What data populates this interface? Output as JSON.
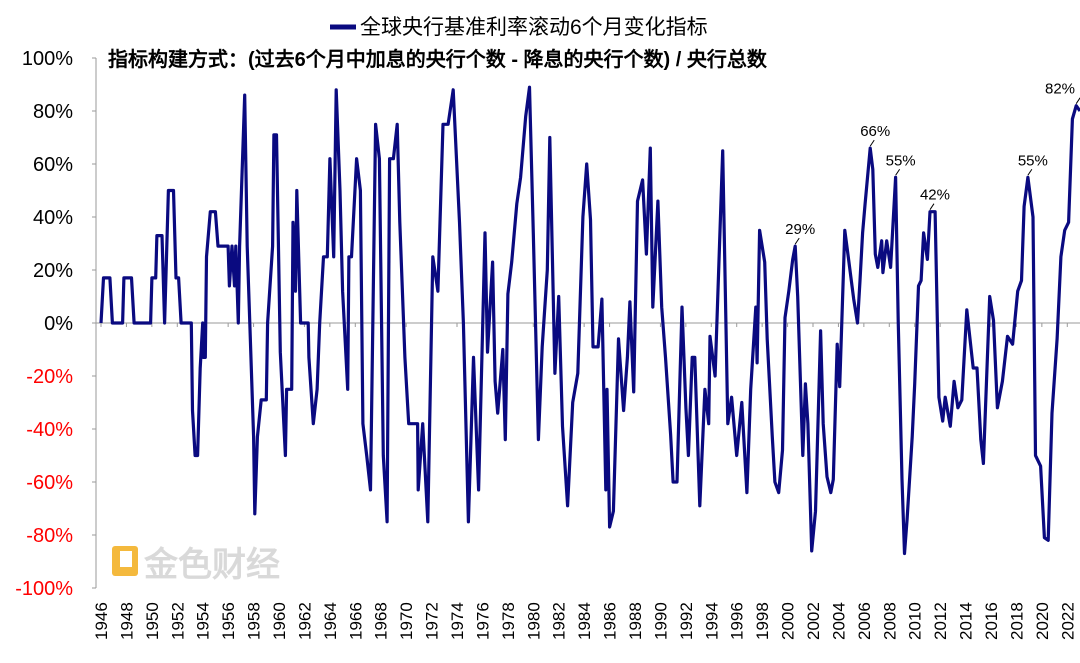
{
  "chart_data": {
    "type": "line",
    "title": "",
    "subtitle": "指标构建方式：(过去6个月中加息的央行个数 - 降息的央行个数) / 央行总数",
    "xlabel": "",
    "ylabel": "",
    "xlim": [
      1946,
      2023
    ],
    "ylim": [
      -100,
      100
    ],
    "y_unit": "%",
    "grid": false,
    "legend_position": "top-center",
    "x_ticks": [
      "1946",
      "1948",
      "1950",
      "1952",
      "1954",
      "1956",
      "1958",
      "1960",
      "1962",
      "1964",
      "1966",
      "1968",
      "1970",
      "1972",
      "1974",
      "1976",
      "1978",
      "1980",
      "1982",
      "1984",
      "1986",
      "1988",
      "1990",
      "1992",
      "1994",
      "1996",
      "1998",
      "2000",
      "2002",
      "2004",
      "2006",
      "2008",
      "2010",
      "2012",
      "2014",
      "2016",
      "2018",
      "2020",
      "2022"
    ],
    "y_ticks": [
      "100%",
      "80%",
      "60%",
      "40%",
      "20%",
      "0%",
      "-20%",
      "-40%",
      "-60%",
      "-80%",
      "-100%"
    ],
    "colors": {
      "series": "#0a0a80",
      "negative_tick": "#ff0000",
      "positive_tick": "#000000",
      "axis": "#9a9a9a"
    },
    "series": [
      {
        "name": "全球央行基准利率滚动6个月变化指标",
        "x": [
          1946.0,
          1946.2,
          1946.7,
          1946.9,
          1947.7,
          1947.8,
          1948.4,
          1948.6,
          1949.9,
          1950.0,
          1950.3,
          1950.4,
          1950.8,
          1951.0,
          1951.3,
          1951.7,
          1951.9,
          1952.1,
          1952.3,
          1953.1,
          1953.2,
          1953.4,
          1953.6,
          1953.8,
          1954.0,
          1954.05,
          1954.2,
          1954.3,
          1954.6,
          1955.0,
          1955.2,
          1956.0,
          1956.1,
          1956.3,
          1956.5,
          1956.6,
          1956.8,
          1956.9,
          1957.3,
          1957.5,
          1957.7,
          1958.0,
          1958.1,
          1958.3,
          1958.6,
          1959.0,
          1959.1,
          1959.5,
          1959.6,
          1959.8,
          1960.1,
          1960.5,
          1960.6,
          1961.0,
          1961.1,
          1961.3,
          1961.4,
          1961.7,
          1962.3,
          1962.35,
          1962.7,
          1963.0,
          1963.2,
          1963.5,
          1963.8,
          1964.0,
          1964.3,
          1964.5,
          1964.8,
          1965.0,
          1965.4,
          1965.5,
          1965.7,
          1966.1,
          1966.4,
          1966.6,
          1966.9,
          1967.2,
          1967.6,
          1967.9,
          1968.2,
          1968.5,
          1968.7,
          1969.0,
          1969.3,
          1969.5,
          1969.9,
          1970.2,
          1970.9,
          1970.95,
          1971.3,
          1971.7,
          1972.1,
          1972.5,
          1972.9,
          1973.3,
          1973.7,
          1974.2,
          1974.5,
          1974.9,
          1975.3,
          1975.7,
          1976.2,
          1976.4,
          1976.8,
          1977.0,
          1977.2,
          1977.6,
          1977.8,
          1978.0,
          1978.3,
          1978.7,
          1979.0,
          1979.4,
          1979.7,
          1980.0,
          1980.4,
          1980.7,
          1981.1,
          1981.3,
          1981.7,
          1982.0,
          1982.3,
          1982.7,
          1983.1,
          1983.5,
          1983.9,
          1984.2,
          1984.5,
          1984.7,
          1985.1,
          1985.4,
          1985.7,
          1985.8,
          1986.0,
          1986.3,
          1986.7,
          1987.1,
          1987.4,
          1987.6,
          1987.9,
          1988.2,
          1988.6,
          1988.9,
          1989.2,
          1989.4,
          1989.8,
          1990.1,
          1990.4,
          1990.8,
          1991.0,
          1991.3,
          1991.7,
          1992.0,
          1992.2,
          1992.5,
          1992.7,
          1993.1,
          1993.5,
          1993.8,
          1993.9,
          1994.3,
          1994.9,
          1995.3,
          1995.6,
          1996.0,
          1996.4,
          1996.8,
          1997.1,
          1997.5,
          1997.6,
          1997.8,
          1998.2,
          1998.4,
          1998.8,
          1999.0,
          1999.3,
          1999.6,
          1999.8,
          2000.1,
          2000.4,
          2000.6,
          2000.8,
          2001.2,
          2001.4,
          2001.6,
          2001.9,
          2002.2,
          2002.6,
          2002.8,
          2003.1,
          2003.4,
          2003.6,
          2003.9,
          2004.1,
          2004.5,
          2004.8,
          2005.2,
          2005.5,
          2005.7,
          2005.9,
          2006.1,
          2006.5,
          2006.7,
          2006.9,
          2007.1,
          2007.4,
          2007.5,
          2007.8,
          2008.1,
          2008.5,
          2008.7,
          2009.0,
          2009.2,
          2009.4,
          2009.8,
          2010.0,
          2010.3,
          2010.5,
          2010.7,
          2011.0,
          2011.2,
          2011.6,
          2011.9,
          2012.2,
          2012.4,
          2012.8,
          2013.1,
          2013.4,
          2013.7,
          2014.1,
          2014.6,
          2014.9,
          2015.2,
          2015.4,
          2015.9,
          2016.2,
          2016.5,
          2016.9,
          2017.3,
          2017.7,
          2018.1,
          2018.4,
          2018.6,
          2018.9,
          2019.3,
          2019.5,
          2019.9,
          2020.2,
          2020.5,
          2020.8,
          2021.2,
          2021.5,
          2021.8,
          2022.1,
          2022.4,
          2022.7,
          2023.0
        ],
        "y": [
          0,
          17,
          17,
          0,
          0,
          17,
          17,
          0,
          0,
          17,
          17,
          33,
          33,
          0,
          50,
          50,
          17,
          17,
          0,
          0,
          -33,
          -50,
          -50,
          -17,
          0,
          -13,
          -13,
          25,
          42,
          42,
          29,
          29,
          14,
          29,
          14,
          29,
          0,
          29,
          86,
          29,
          0,
          -43,
          -72,
          -43,
          -29,
          -29,
          0,
          29,
          71,
          71,
          -11,
          -50,
          -25,
          -25,
          38,
          12,
          50,
          0,
          0,
          -13,
          -38,
          -25,
          0,
          25,
          25,
          62,
          25,
          88,
          50,
          12,
          -25,
          25,
          25,
          62,
          50,
          -38,
          -50,
          -63,
          75,
          62,
          -50,
          -75,
          62,
          62,
          75,
          38,
          -13,
          -38,
          -38,
          -63,
          -38,
          -75,
          25,
          12,
          75,
          75,
          88,
          38,
          0,
          -75,
          -13,
          -63,
          34,
          -11,
          23,
          -22,
          -34,
          -10,
          -44,
          11,
          23,
          45,
          55,
          78,
          89,
          34,
          -44,
          -9,
          20,
          70,
          -19,
          10,
          -39,
          -69,
          -30,
          -19,
          40,
          60,
          39,
          -9,
          -9,
          9,
          -63,
          -25,
          -77,
          -71,
          -6,
          -33,
          -13,
          8,
          -26,
          46,
          54,
          26,
          66,
          6,
          46,
          6,
          -13,
          -42,
          -60,
          -60,
          6,
          -32,
          -50,
          -13,
          -13,
          -69,
          -25,
          -38,
          -5,
          -20,
          65,
          -38,
          -28,
          -50,
          -30,
          -64,
          -25,
          6,
          -15,
          35,
          23,
          -6,
          -43,
          -60,
          -64,
          -48,
          2,
          12,
          24,
          29,
          10,
          -50,
          -23,
          -38,
          -86,
          -71,
          -3,
          -38,
          -58,
          -64,
          -59,
          -8,
          -24,
          35,
          24,
          9,
          0,
          16,
          34,
          45,
          66,
          58,
          26,
          21,
          31,
          19,
          31,
          21,
          55,
          1,
          -59,
          -87,
          -74,
          -43,
          -23,
          14,
          16,
          34,
          24,
          42,
          42,
          -28,
          -37,
          -28,
          -39,
          -22,
          -32,
          -29,
          5,
          -17,
          -17,
          -44,
          -53,
          10,
          1,
          -32,
          -22,
          -5,
          -8,
          12,
          16,
          44,
          55,
          40,
          -50,
          -54,
          -81,
          -82,
          -34,
          -6,
          25,
          35,
          38,
          77,
          82,
          80
        ]
      }
    ],
    "annotations": [
      {
        "x": 2000.6,
        "y": 29,
        "label": "29%"
      },
      {
        "x": 2006.5,
        "y": 66,
        "label": "66%"
      },
      {
        "x": 2008.5,
        "y": 55,
        "label": "55%"
      },
      {
        "x": 2011.2,
        "y": 42,
        "label": "42%"
      },
      {
        "x": 2018.9,
        "y": 55,
        "label": "55%"
      },
      {
        "x": 2022.7,
        "y": 82,
        "label": "82%"
      }
    ]
  },
  "watermark": "金色财经"
}
